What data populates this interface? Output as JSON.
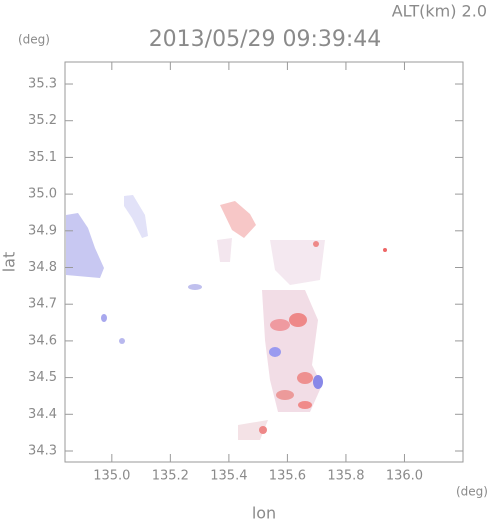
{
  "chart_data": {
    "type": "map",
    "title": "2013/05/29 09:39:44",
    "annotation": "ALT(km) 2.0",
    "x_label": "lon",
    "y_label": "lat",
    "x_unit": "(deg)",
    "y_unit": "(deg)",
    "xlim": [
      134.84,
      136.2
    ],
    "ylim": [
      34.27,
      35.36
    ],
    "xticks": [
      {
        "value": 135.0,
        "label": "135.0"
      },
      135.2,
      135.4,
      135.6,
      135.8,
      {
        "value": 136.0,
        "label": "136.0"
      }
    ],
    "yticks": [
      34.3,
      34.4,
      34.5,
      34.6,
      34.7,
      34.8,
      34.9,
      {
        "value": 35.0,
        "label": "35.0"
      },
      35.1,
      35.2,
      35.3
    ]
  }
}
